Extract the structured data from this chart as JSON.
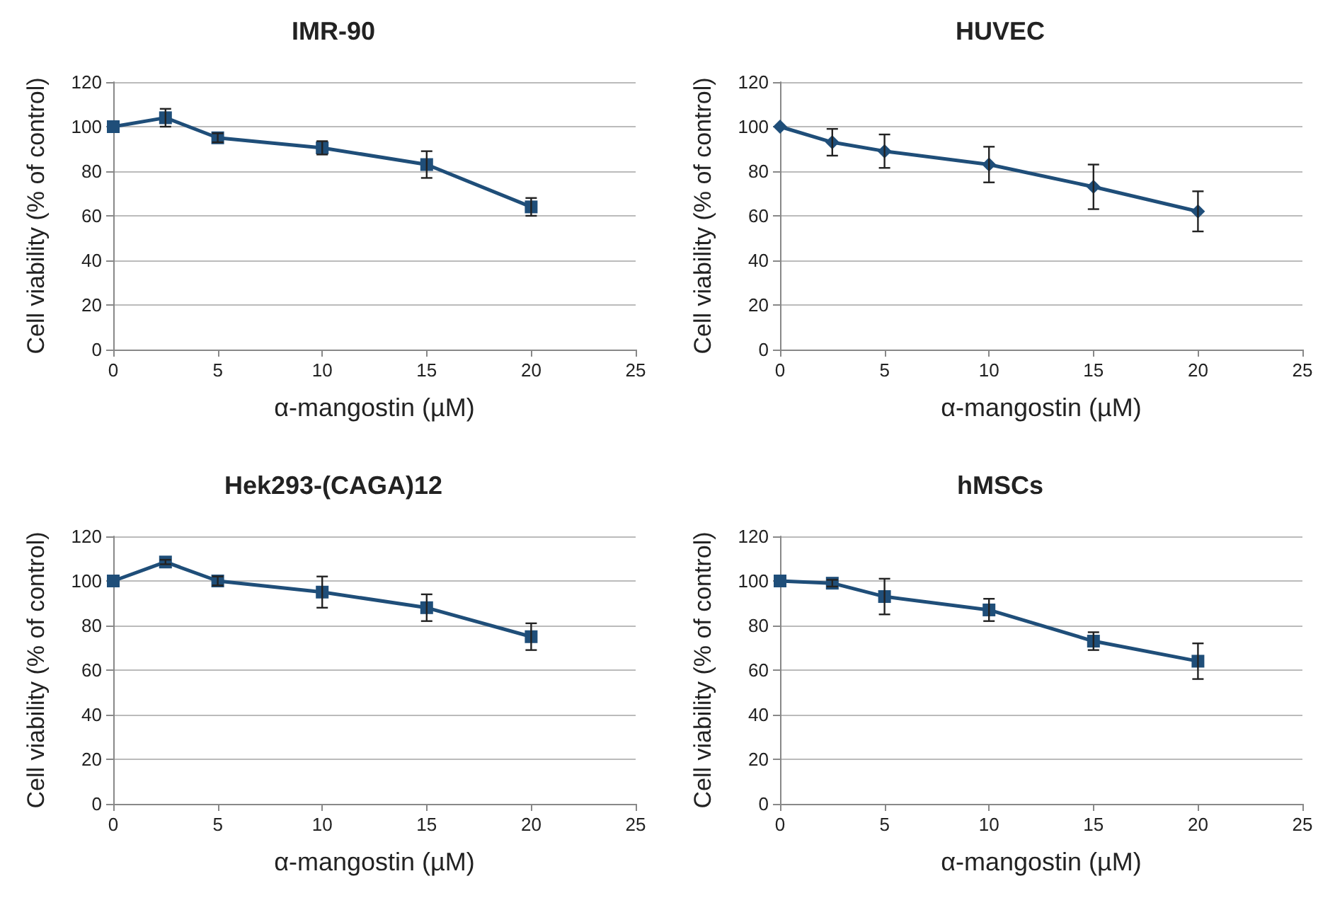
{
  "chart_data": [
    {
      "type": "line",
      "title": "IMR-90",
      "xlabel": "α-mangostin (µM)",
      "ylabel": "Cell viability (% of control)",
      "x": [
        0,
        2.5,
        5,
        10,
        15,
        20
      ],
      "series": [
        {
          "color": "#1f4e79",
          "values": [
            100,
            104,
            95,
            90.5,
            83,
            64
          ],
          "errors": [
            null,
            4,
            2,
            3,
            6,
            4
          ]
        }
      ],
      "xlim": [
        0,
        25
      ],
      "xticks": [
        0,
        5,
        10,
        15,
        20,
        25
      ],
      "ylim": [
        0,
        120
      ],
      "yticks": [
        0,
        20,
        40,
        60,
        80,
        100,
        120
      ],
      "grid": "y",
      "marker": "square"
    },
    {
      "type": "line",
      "title": "HUVEC",
      "xlabel": "α-mangostin (µM)",
      "ylabel": "Cell viability (% of control)",
      "x": [
        0,
        2.5,
        5,
        10,
        15,
        20
      ],
      "series": [
        {
          "color": "#1f4e79",
          "values": [
            100,
            93,
            89,
            83,
            73,
            62
          ],
          "errors": [
            null,
            6,
            7.5,
            8,
            10,
            9
          ]
        }
      ],
      "xlim": [
        0,
        25
      ],
      "xticks": [
        0,
        5,
        10,
        15,
        20,
        25
      ],
      "ylim": [
        0,
        120
      ],
      "yticks": [
        0,
        20,
        40,
        60,
        80,
        100,
        120
      ],
      "grid": "y",
      "marker": "diamond"
    },
    {
      "type": "line",
      "title": "Hek293-(CAGA)12",
      "xlabel": "α-mangostin (µM)",
      "ylabel": "Cell viability (% of control)",
      "x": [
        0,
        2.5,
        5,
        10,
        15,
        20
      ],
      "series": [
        {
          "color": "#1f4e79",
          "values": [
            100,
            108.5,
            100,
            95,
            88,
            75
          ],
          "errors": [
            null,
            1,
            2,
            7,
            6,
            6
          ]
        }
      ],
      "xlim": [
        0,
        25
      ],
      "xticks": [
        0,
        5,
        10,
        15,
        20,
        25
      ],
      "ylim": [
        0,
        120
      ],
      "yticks": [
        0,
        20,
        40,
        60,
        80,
        100,
        120
      ],
      "grid": "y",
      "marker": "square"
    },
    {
      "type": "line",
      "title": "hMSCs",
      "xlabel": "α-mangostin (µM)",
      "ylabel": "Cell viability (% of control)",
      "x": [
        0,
        2.5,
        5,
        10,
        15,
        20
      ],
      "series": [
        {
          "color": "#1f4e79",
          "values": [
            100,
            99,
            93,
            87,
            73,
            64
          ],
          "errors": [
            null,
            1.5,
            8,
            5,
            4,
            8
          ]
        }
      ],
      "xlim": [
        0,
        25
      ],
      "xticks": [
        0,
        5,
        10,
        15,
        20,
        25
      ],
      "ylim": [
        0,
        120
      ],
      "yticks": [
        0,
        20,
        40,
        60,
        80,
        100,
        120
      ],
      "grid": "y",
      "marker": "square"
    }
  ]
}
